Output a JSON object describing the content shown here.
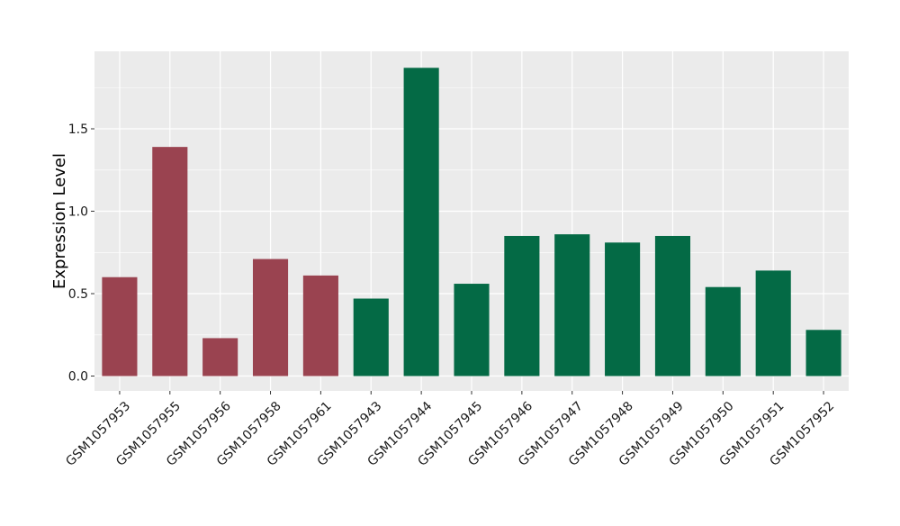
{
  "chart_data": {
    "type": "bar",
    "title": "",
    "xlabel": "",
    "ylabel": "Expression Level",
    "ylim": [
      -0.09,
      1.97
    ],
    "yticks": [
      0.0,
      0.5,
      1.0,
      1.5
    ],
    "ytick_labels": [
      "0.0",
      "0.5",
      "1.0",
      "1.5"
    ],
    "grid": true,
    "legend": "none",
    "categories": [
      "GSM1057953",
      "GSM1057955",
      "GSM1057956",
      "GSM1057958",
      "GSM1057961",
      "GSM1057943",
      "GSM1057944",
      "GSM1057945",
      "GSM1057946",
      "GSM1057947",
      "GSM1057948",
      "GSM1057949",
      "GSM1057950",
      "GSM1057951",
      "GSM1057952"
    ],
    "values": [
      0.6,
      1.39,
      0.23,
      0.71,
      0.61,
      0.47,
      1.87,
      0.56,
      0.85,
      0.86,
      0.81,
      0.85,
      0.54,
      0.64,
      0.28
    ],
    "groups": [
      0,
      0,
      0,
      0,
      0,
      1,
      1,
      1,
      1,
      1,
      1,
      1,
      1,
      1,
      1
    ],
    "group_colors": [
      "#9a4350",
      "#046a45"
    ],
    "panel_background": "#ebebeb",
    "grid_color": "#ffffff"
  }
}
